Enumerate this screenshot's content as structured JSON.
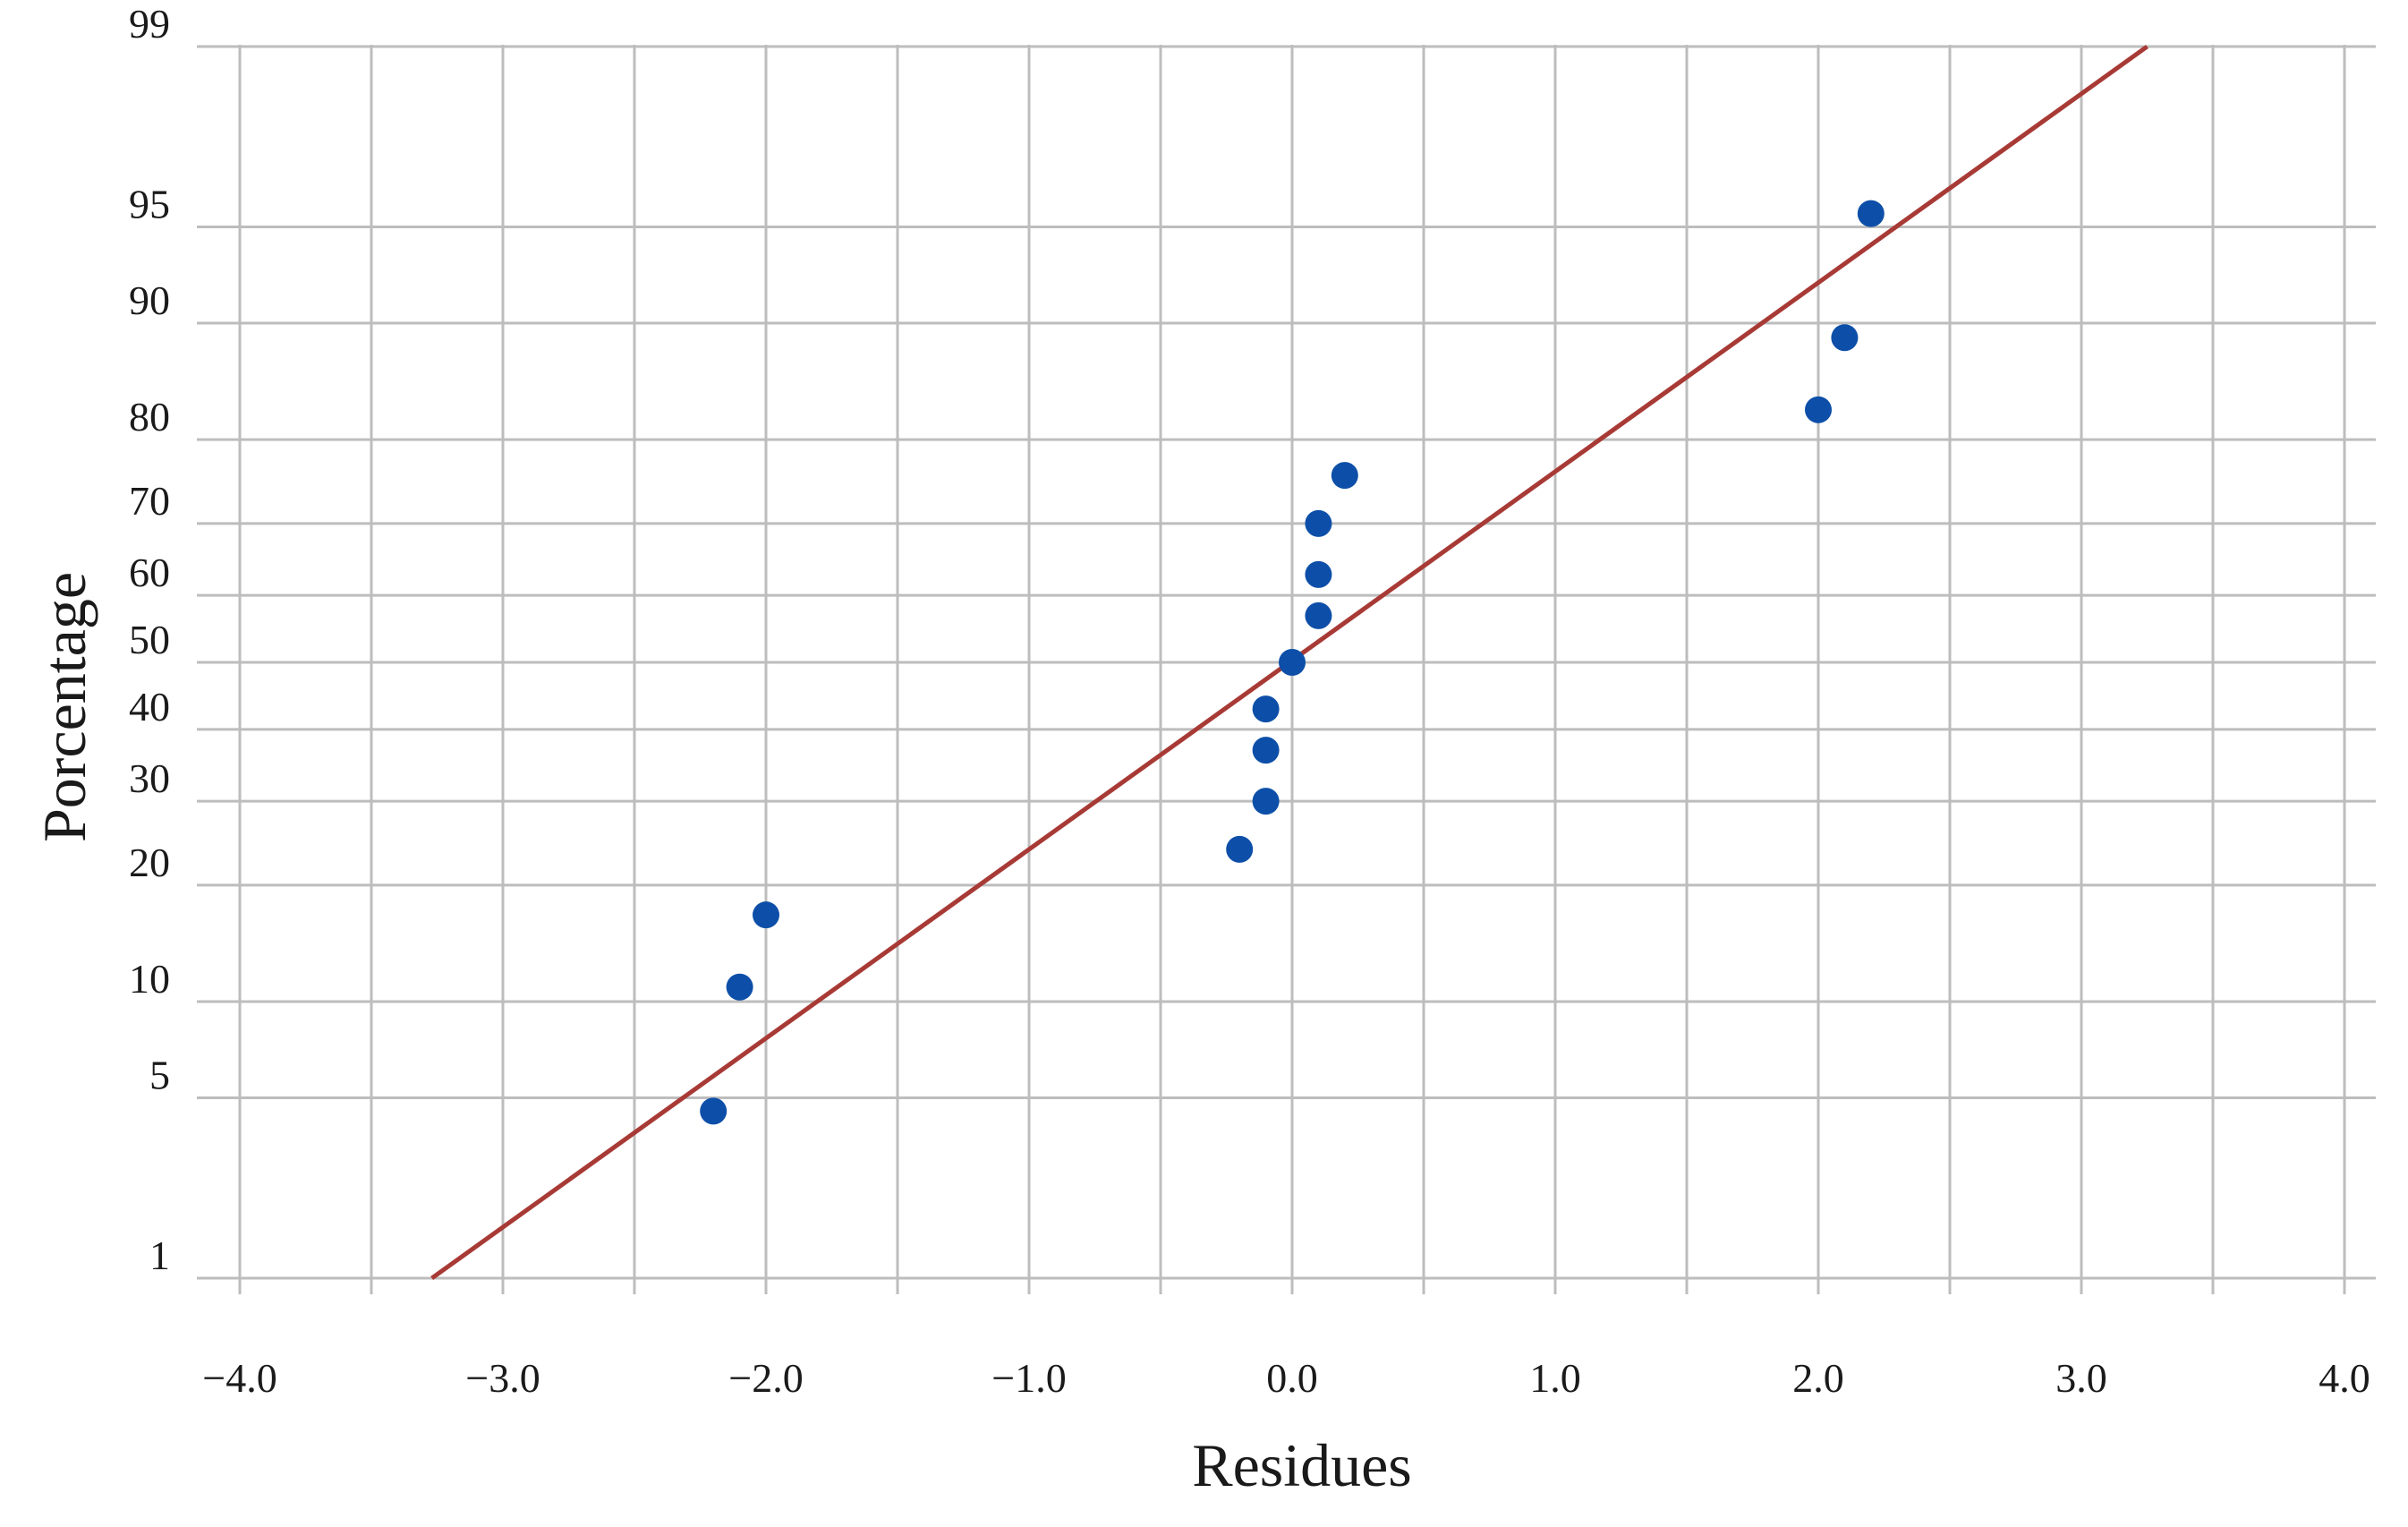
{
  "chart_data": {
    "type": "scatter",
    "title": "",
    "xlabel": "Residues",
    "ylabel": "Porcentage",
    "y_scale": "probability",
    "xlim": [
      -4.0,
      4.0
    ],
    "x_ticks": [
      "−4.0",
      "−3.0",
      "−2.0",
      "−1.0",
      "0.0",
      "1.0",
      "2.0",
      "3.0",
      "4.0"
    ],
    "x_tick_values": [
      -4,
      -3,
      -2,
      -1,
      0,
      1,
      2,
      3,
      4
    ],
    "y_ticks": [
      "1",
      "5",
      "10",
      "20",
      "30",
      "40",
      "50",
      "60",
      "70",
      "80",
      "90",
      "95",
      "99"
    ],
    "y_tick_values": [
      1,
      5,
      10,
      20,
      30,
      40,
      50,
      60,
      70,
      80,
      90,
      95,
      99
    ],
    "grid": true,
    "legend": "none",
    "points": [
      {
        "x": -2.2,
        "y": 4.5
      },
      {
        "x": -2.1,
        "y": 11
      },
      {
        "x": -2.0,
        "y": 17
      },
      {
        "x": -0.2,
        "y": 24
      },
      {
        "x": -0.1,
        "y": 30
      },
      {
        "x": -0.1,
        "y": 37
      },
      {
        "x": -0.1,
        "y": 43
      },
      {
        "x": 0.0,
        "y": 50
      },
      {
        "x": 0.1,
        "y": 57
      },
      {
        "x": 0.1,
        "y": 63
      },
      {
        "x": 0.1,
        "y": 70
      },
      {
        "x": 0.2,
        "y": 76
      },
      {
        "x": 2.0,
        "y": 83
      },
      {
        "x": 2.1,
        "y": 89
      },
      {
        "x": 2.2,
        "y": 95.5
      }
    ],
    "fit_line": {
      "x": [
        -3.27,
        3.25
      ],
      "y": [
        1,
        99
      ]
    },
    "colors": {
      "points": "#0d4fa8",
      "fit_line": "#a83a36",
      "grid": "#bdbdbd"
    }
  }
}
